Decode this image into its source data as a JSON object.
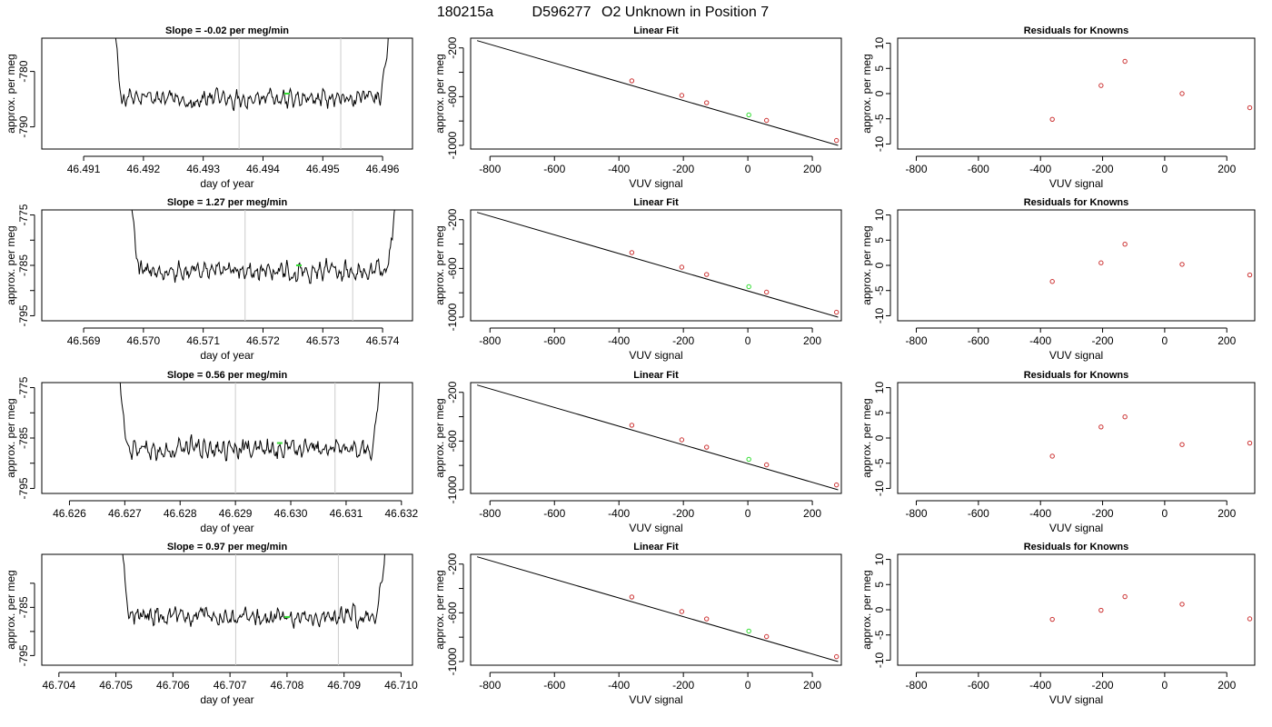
{
  "figure": {
    "title_id": "180215a",
    "title_sample": "D596277",
    "title_desc": "O2 Unknown in Position  7"
  },
  "colors": {
    "trace": "#000000",
    "known_points": "#cc3333",
    "unknown_point": "#33dd33",
    "marker_lines": "#cccccc",
    "fit_line": "#000000"
  },
  "chart_data": [
    {
      "type": "line",
      "row": 1,
      "panel": "timeseries",
      "title": "Slope =  -0.02  per meg/min",
      "xlabel": "day of year",
      "ylabel": "approx. per meg",
      "xlim": [
        46.4903,
        46.4965
      ],
      "ylim": [
        -794,
        -774
      ],
      "xticks": [
        46.491,
        46.492,
        46.493,
        46.494,
        46.495,
        46.496
      ],
      "xtick_labels": [
        "46.491",
        "46.492",
        "46.493",
        "46.494",
        "46.495",
        "46.496"
      ],
      "yticks": [
        -780,
        -790
      ],
      "ytick_labels": [
        "-780",
        "-790"
      ],
      "trace_start": 46.4914,
      "trace_end": 46.4962,
      "level": -785,
      "noise": 2.2,
      "vlines": [
        46.4936,
        46.4953
      ],
      "unknown_marker": {
        "x": 46.4944,
        "y": -784
      }
    },
    {
      "type": "scatter",
      "row": 1,
      "panel": "linear_fit",
      "title": "Linear Fit",
      "xlabel": "VUV signal",
      "ylabel": "approx. per meg",
      "xlim": [
        -860,
        290
      ],
      "ylim": [
        -1030,
        -120
      ],
      "xticks": [
        -800,
        -600,
        -400,
        -200,
        0,
        200
      ],
      "xtick_labels": [
        "-800",
        "-600",
        "-400",
        "-200",
        "0",
        "200"
      ],
      "yticks": [
        -200,
        -400,
        -600,
        -800,
        -1000
      ],
      "ytick_labels": [
        "-200",
        "",
        "-600",
        "",
        "-1000"
      ],
      "fit_line": {
        "x1": -840,
        "y1": -140,
        "x2": 280,
        "y2": -1000
      },
      "knowns": [
        {
          "x": -360,
          "y": -470
        },
        {
          "x": -205,
          "y": -590
        },
        {
          "x": -128,
          "y": -650
        },
        {
          "x": 58,
          "y": -795
        },
        {
          "x": 275,
          "y": -960
        }
      ],
      "unknown": {
        "x": 3,
        "y": -750
      }
    },
    {
      "type": "scatter",
      "row": 1,
      "panel": "residuals",
      "title": "Residuals for Knowns",
      "xlabel": "VUV signal",
      "ylabel": "approx. per meg",
      "xlim": [
        -860,
        290
      ],
      "ylim": [
        -11,
        11
      ],
      "xticks": [
        -800,
        -600,
        -400,
        -200,
        0,
        200
      ],
      "xtick_labels": [
        "-800",
        "-600",
        "-400",
        "-200",
        "0",
        "200"
      ],
      "yticks": [
        10,
        5,
        0,
        -5,
        -10
      ],
      "ytick_labels": [
        "10",
        "5",
        "0",
        "-5",
        "-10"
      ],
      "points": [
        {
          "x": -362,
          "y": -5.1
        },
        {
          "x": -205,
          "y": 1.6
        },
        {
          "x": -128,
          "y": 6.4
        },
        {
          "x": 56,
          "y": 0.0
        },
        {
          "x": 274,
          "y": -2.8
        }
      ]
    },
    {
      "type": "line",
      "row": 2,
      "panel": "timeseries",
      "title": "Slope =  1.27  per meg/min",
      "xlabel": "day of year",
      "ylabel": "approx. per meg",
      "xlim": [
        46.5683,
        46.5745
      ],
      "ylim": [
        -796,
        -774
      ],
      "xticks": [
        46.569,
        46.57,
        46.571,
        46.572,
        46.573,
        46.574
      ],
      "xtick_labels": [
        "46.569",
        "46.570",
        "46.571",
        "46.572",
        "46.573",
        "46.574"
      ],
      "yticks": [
        -775,
        -780,
        -785,
        -790,
        -795
      ],
      "ytick_labels": [
        "-775",
        "",
        "-785",
        "",
        "-795"
      ],
      "trace_start": 46.5697,
      "trace_end": 46.5743,
      "level": -786,
      "noise": 2.5,
      "vlines": [
        46.5717,
        46.5735
      ],
      "unknown_marker": {
        "x": 46.5726,
        "y": -785
      }
    },
    {
      "type": "scatter",
      "row": 2,
      "panel": "linear_fit",
      "title": "Linear Fit",
      "xlabel": "VUV signal",
      "ylabel": "approx. per meg",
      "xlim": [
        -860,
        290
      ],
      "ylim": [
        -1030,
        -120
      ],
      "xticks": [
        -800,
        -600,
        -400,
        -200,
        0,
        200
      ],
      "xtick_labels": [
        "-800",
        "-600",
        "-400",
        "-200",
        "0",
        "200"
      ],
      "yticks": [
        -200,
        -400,
        -600,
        -800,
        -1000
      ],
      "ytick_labels": [
        "-200",
        "",
        "-600",
        "",
        "-1000"
      ],
      "fit_line": {
        "x1": -840,
        "y1": -140,
        "x2": 280,
        "y2": -1000
      },
      "knowns": [
        {
          "x": -360,
          "y": -470
        },
        {
          "x": -205,
          "y": -590
        },
        {
          "x": -128,
          "y": -650
        },
        {
          "x": 58,
          "y": -795
        },
        {
          "x": 275,
          "y": -960
        }
      ],
      "unknown": {
        "x": 3,
        "y": -750
      }
    },
    {
      "type": "scatter",
      "row": 2,
      "panel": "residuals",
      "title": "Residuals for Knowns",
      "xlabel": "VUV signal",
      "ylabel": "approx. per meg",
      "xlim": [
        -860,
        290
      ],
      "ylim": [
        -11,
        11
      ],
      "xticks": [
        -800,
        -600,
        -400,
        -200,
        0,
        200
      ],
      "xtick_labels": [
        "-800",
        "-600",
        "-400",
        "-200",
        "0",
        "200"
      ],
      "yticks": [
        10,
        5,
        0,
        -5,
        -10
      ],
      "ytick_labels": [
        "10",
        "5",
        "0",
        "-5",
        "-10"
      ],
      "points": [
        {
          "x": -362,
          "y": -3.2
        },
        {
          "x": -205,
          "y": 0.5
        },
        {
          "x": -128,
          "y": 4.2
        },
        {
          "x": 56,
          "y": 0.2
        },
        {
          "x": 274,
          "y": -1.9
        }
      ]
    },
    {
      "type": "line",
      "row": 3,
      "panel": "timeseries",
      "title": "Slope =  0.56  per meg/min",
      "xlabel": "day of year",
      "ylabel": "approx. per meg",
      "xlim": [
        46.6255,
        46.6322
      ],
      "ylim": [
        -796,
        -774
      ],
      "xticks": [
        46.626,
        46.627,
        46.628,
        46.629,
        46.63,
        46.631,
        46.632
      ],
      "xtick_labels": [
        "46.626",
        "46.627",
        "46.628",
        "46.629",
        "46.630",
        "46.631",
        "46.632"
      ],
      "yticks": [
        -775,
        -780,
        -785,
        -790,
        -795
      ],
      "ytick_labels": [
        "-775",
        "",
        "-785",
        "",
        "-795"
      ],
      "trace_start": 46.6268,
      "trace_end": 46.6317,
      "level": -787,
      "noise": 2.5,
      "vlines": [
        46.629,
        46.6308
      ],
      "unknown_marker": {
        "x": 46.6298,
        "y": -786
      }
    },
    {
      "type": "scatter",
      "row": 3,
      "panel": "linear_fit",
      "title": "Linear Fit",
      "xlabel": "VUV signal",
      "ylabel": "approx. per meg",
      "xlim": [
        -860,
        290
      ],
      "ylim": [
        -1030,
        -120
      ],
      "xticks": [
        -800,
        -600,
        -400,
        -200,
        0,
        200
      ],
      "xtick_labels": [
        "-800",
        "-600",
        "-400",
        "-200",
        "0",
        "200"
      ],
      "yticks": [
        -200,
        -400,
        -600,
        -800,
        -1000
      ],
      "ytick_labels": [
        "-200",
        "",
        "-600",
        "",
        "-1000"
      ],
      "fit_line": {
        "x1": -840,
        "y1": -140,
        "x2": 280,
        "y2": -1000
      },
      "knowns": [
        {
          "x": -360,
          "y": -470
        },
        {
          "x": -205,
          "y": -590
        },
        {
          "x": -128,
          "y": -650
        },
        {
          "x": 58,
          "y": -795
        },
        {
          "x": 275,
          "y": -960
        }
      ],
      "unknown": {
        "x": 3,
        "y": -750
      }
    },
    {
      "type": "scatter",
      "row": 3,
      "panel": "residuals",
      "title": "Residuals for Knowns",
      "xlabel": "VUV signal",
      "ylabel": "approx. per meg",
      "xlim": [
        -860,
        290
      ],
      "ylim": [
        -11,
        11
      ],
      "xticks": [
        -800,
        -600,
        -400,
        -200,
        0,
        200
      ],
      "xtick_labels": [
        "-800",
        "-600",
        "-400",
        "-200",
        "0",
        "200"
      ],
      "yticks": [
        10,
        5,
        0,
        -5,
        -10
      ],
      "ytick_labels": [
        "10",
        "5",
        "0",
        "-5",
        "-10"
      ],
      "points": [
        {
          "x": -362,
          "y": -3.6
        },
        {
          "x": -205,
          "y": 2.2
        },
        {
          "x": -128,
          "y": 4.2
        },
        {
          "x": 56,
          "y": -1.3
        },
        {
          "x": 274,
          "y": -1.0
        }
      ]
    },
    {
      "type": "line",
      "row": 4,
      "panel": "timeseries",
      "title": "Slope =  0.97  per meg/min",
      "xlabel": "day of year",
      "ylabel": "approx. per meg",
      "xlim": [
        46.7037,
        46.7102
      ],
      "ylim": [
        -797,
        -774
      ],
      "xticks": [
        46.704,
        46.705,
        46.706,
        46.707,
        46.708,
        46.709,
        46.71
      ],
      "xtick_labels": [
        "46.704",
        "46.705",
        "46.706",
        "46.707",
        "46.708",
        "46.709",
        "46.710"
      ],
      "yticks": [
        -780,
        -785,
        -790,
        -795
      ],
      "ytick_labels": [
        "",
        "-785",
        "",
        "-795"
      ],
      "trace_start": 46.705,
      "trace_end": 46.7098,
      "level": -787,
      "noise": 2.4,
      "vlines": [
        46.7071,
        46.7089
      ],
      "unknown_marker": {
        "x": 46.708,
        "y": -787
      }
    },
    {
      "type": "scatter",
      "row": 4,
      "panel": "linear_fit",
      "title": "Linear Fit",
      "xlabel": "VUV signal",
      "ylabel": "approx. per meg",
      "xlim": [
        -860,
        290
      ],
      "ylim": [
        -1030,
        -120
      ],
      "xticks": [
        -800,
        -600,
        -400,
        -200,
        0,
        200
      ],
      "xtick_labels": [
        "-800",
        "-600",
        "-400",
        "-200",
        "0",
        "200"
      ],
      "yticks": [
        -200,
        -400,
        -600,
        -800,
        -1000
      ],
      "ytick_labels": [
        "-200",
        "",
        "-600",
        "",
        "-1000"
      ],
      "fit_line": {
        "x1": -840,
        "y1": -140,
        "x2": 280,
        "y2": -1000
      },
      "knowns": [
        {
          "x": -360,
          "y": -470
        },
        {
          "x": -205,
          "y": -590
        },
        {
          "x": -128,
          "y": -650
        },
        {
          "x": 58,
          "y": -795
        },
        {
          "x": 275,
          "y": -960
        }
      ],
      "unknown": {
        "x": 3,
        "y": -750
      }
    },
    {
      "type": "scatter",
      "row": 4,
      "panel": "residuals",
      "title": "Residuals for Knowns",
      "xlabel": "VUV signal",
      "ylabel": "approx. per meg",
      "xlim": [
        -860,
        290
      ],
      "ylim": [
        -11,
        11
      ],
      "xticks": [
        -800,
        -600,
        -400,
        -200,
        0,
        200
      ],
      "xtick_labels": [
        "-800",
        "-600",
        "-400",
        "-200",
        "0",
        "200"
      ],
      "yticks": [
        10,
        5,
        0,
        -5,
        -10
      ],
      "ytick_labels": [
        "10",
        "5",
        "0",
        "-5",
        "-10"
      ],
      "points": [
        {
          "x": -362,
          "y": -1.9
        },
        {
          "x": -205,
          "y": -0.1
        },
        {
          "x": -128,
          "y": 2.6
        },
        {
          "x": 56,
          "y": 1.1
        },
        {
          "x": 274,
          "y": -1.8
        }
      ]
    }
  ]
}
